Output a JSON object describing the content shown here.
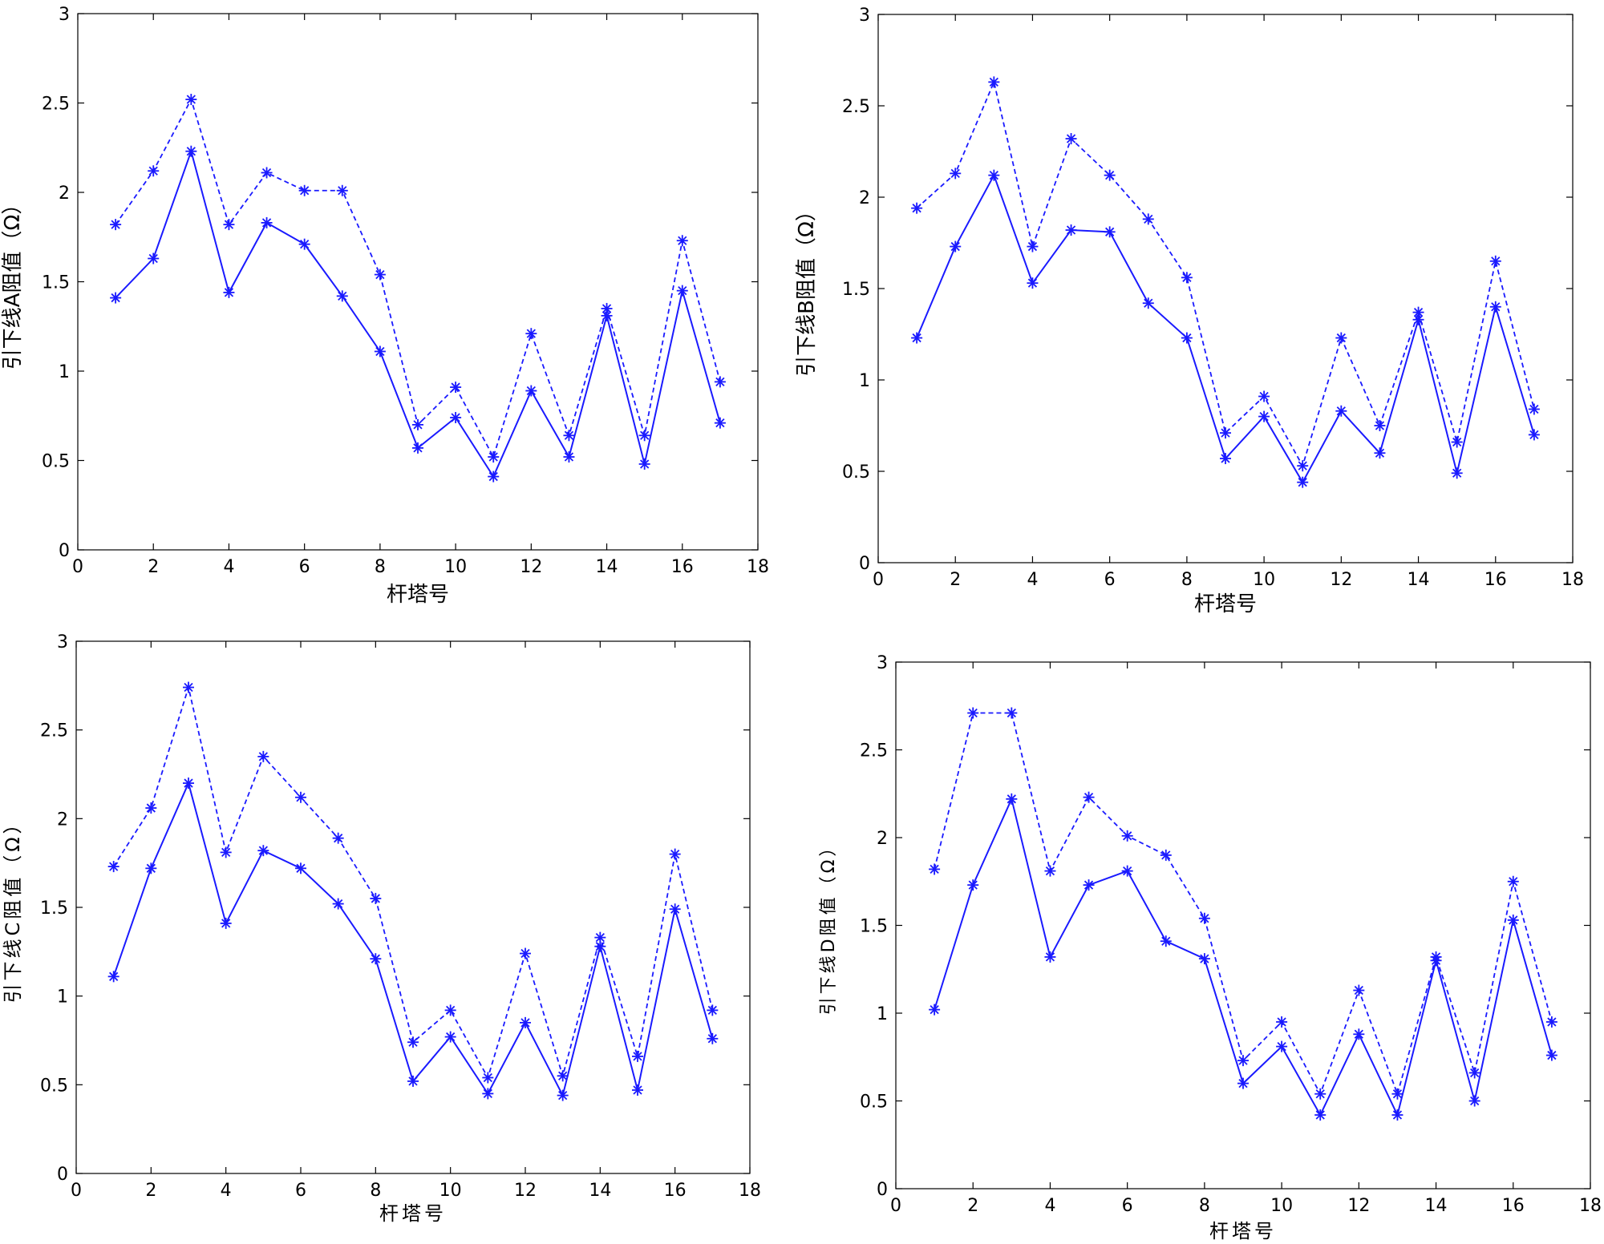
{
  "chart_data": [
    {
      "type": "line",
      "xlabel": "杆塔号",
      "ylabel": "引下线A阻值（Ω）",
      "xlim": [
        0,
        18
      ],
      "ylim": [
        0,
        3
      ],
      "xticks": [
        "0",
        "2",
        "4",
        "6",
        "8",
        "10",
        "12",
        "14",
        "16",
        "18"
      ],
      "yticks": [
        "0",
        "0.5",
        "1",
        "1.5",
        "2",
        "2.5",
        "3"
      ],
      "marker": "asterisk",
      "color": "#1a1aff",
      "x": [
        1,
        2,
        3,
        4,
        5,
        6,
        7,
        8,
        9,
        10,
        11,
        12,
        13,
        14,
        15,
        16,
        17
      ],
      "series": [
        {
          "style": "solid",
          "values": [
            1.41,
            1.63,
            2.23,
            1.44,
            1.83,
            1.71,
            1.42,
            1.11,
            0.57,
            0.74,
            0.41,
            0.89,
            0.52,
            1.31,
            0.48,
            1.45,
            0.71
          ]
        },
        {
          "style": "dashed",
          "values": [
            1.82,
            2.12,
            2.52,
            1.82,
            2.11,
            2.01,
            2.01,
            1.54,
            0.7,
            0.91,
            0.52,
            1.21,
            0.64,
            1.35,
            0.64,
            1.73,
            0.94
          ]
        }
      ]
    },
    {
      "type": "line",
      "xlabel": "杆塔号",
      "ylabel": "引下线B阻值（Ω）",
      "xlim": [
        0,
        18
      ],
      "ylim": [
        0,
        3
      ],
      "xticks": [
        "0",
        "2",
        "4",
        "6",
        "8",
        "10",
        "12",
        "14",
        "16",
        "18"
      ],
      "yticks": [
        "0",
        "0.5",
        "1",
        "1.5",
        "2",
        "2.5",
        "3"
      ],
      "marker": "asterisk",
      "color": "#1a1aff",
      "x": [
        1,
        2,
        3,
        4,
        5,
        6,
        7,
        8,
        9,
        10,
        11,
        12,
        13,
        14,
        15,
        16,
        17
      ],
      "series": [
        {
          "style": "solid",
          "values": [
            1.23,
            1.73,
            2.12,
            1.53,
            1.82,
            1.81,
            1.42,
            1.23,
            0.57,
            0.8,
            0.44,
            0.83,
            0.6,
            1.33,
            0.49,
            1.4,
            0.7
          ]
        },
        {
          "style": "dashed",
          "values": [
            1.94,
            2.13,
            2.63,
            1.73,
            2.32,
            2.12,
            1.88,
            1.56,
            0.71,
            0.91,
            0.53,
            1.23,
            0.75,
            1.37,
            0.66,
            1.65,
            0.84
          ]
        }
      ]
    },
    {
      "type": "line",
      "xlabel": "杆塔号",
      "ylabel": "引下线C阻值（Ω）",
      "xlim": [
        0,
        18
      ],
      "ylim": [
        0,
        3
      ],
      "xticks": [
        "0",
        "2",
        "4",
        "6",
        "8",
        "10",
        "12",
        "14",
        "16",
        "18"
      ],
      "yticks": [
        "0",
        "0.5",
        "1",
        "1.5",
        "2",
        "2.5",
        "3"
      ],
      "marker": "asterisk",
      "color": "#1a1aff",
      "x": [
        1,
        2,
        3,
        4,
        5,
        6,
        7,
        8,
        9,
        10,
        11,
        12,
        13,
        14,
        15,
        16,
        17
      ],
      "series": [
        {
          "style": "solid",
          "values": [
            1.11,
            1.72,
            2.2,
            1.41,
            1.82,
            1.72,
            1.52,
            1.21,
            0.52,
            0.77,
            0.45,
            0.85,
            0.44,
            1.28,
            0.47,
            1.49,
            0.76
          ]
        },
        {
          "style": "dashed",
          "values": [
            1.73,
            2.06,
            2.74,
            1.81,
            2.35,
            2.12,
            1.89,
            1.55,
            0.74,
            0.92,
            0.54,
            1.24,
            0.55,
            1.33,
            0.66,
            1.8,
            0.92
          ]
        }
      ]
    },
    {
      "type": "line",
      "xlabel": "杆塔号",
      "ylabel": "引下线D阻值（Ω）",
      "xlim": [
        0,
        18
      ],
      "ylim": [
        0,
        3
      ],
      "xticks": [
        "0",
        "2",
        "4",
        "6",
        "8",
        "10",
        "12",
        "14",
        "16",
        "18"
      ],
      "yticks": [
        "0",
        "0.5",
        "1",
        "1.5",
        "2",
        "2.5",
        "3"
      ],
      "marker": "asterisk",
      "color": "#1a1aff",
      "x": [
        1,
        2,
        3,
        4,
        5,
        6,
        7,
        8,
        9,
        10,
        11,
        12,
        13,
        14,
        15,
        16,
        17
      ],
      "series": [
        {
          "style": "solid",
          "values": [
            1.02,
            1.73,
            2.22,
            1.32,
            1.73,
            1.81,
            1.41,
            1.31,
            0.6,
            0.81,
            0.42,
            0.88,
            0.42,
            1.3,
            0.5,
            1.53,
            0.76
          ]
        },
        {
          "style": "dashed",
          "values": [
            1.82,
            2.71,
            2.71,
            1.81,
            2.23,
            2.01,
            1.9,
            1.54,
            0.73,
            0.95,
            0.54,
            1.13,
            0.54,
            1.32,
            0.66,
            1.75,
            0.95
          ]
        }
      ]
    }
  ]
}
